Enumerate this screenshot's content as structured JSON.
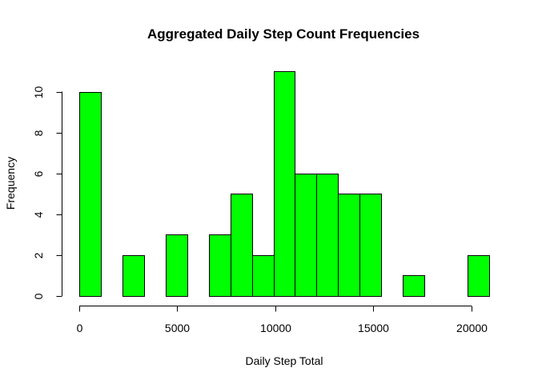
{
  "chart_data": {
    "type": "bar",
    "title": "Aggregated Daily Step Count Frequencies",
    "xlabel": "Daily Step Total",
    "ylabel": "Frequency",
    "bar_color": "#00ff00",
    "bin_edges": [
      0,
      1100,
      2200,
      3300,
      4400,
      5500,
      6600,
      7700,
      8800,
      9900,
      11000,
      12100,
      13200,
      14300,
      15400,
      16500,
      17600,
      18700,
      19800,
      20900
    ],
    "values": [
      10,
      0,
      2,
      0,
      3,
      0,
      3,
      5,
      2,
      11,
      6,
      6,
      5,
      5,
      0,
      1,
      0,
      0,
      2
    ],
    "xlim": [
      0,
      20900
    ],
    "ylim": [
      0,
      11
    ],
    "x_ticks": [
      0,
      5000,
      10000,
      15000,
      20000
    ],
    "y_ticks": [
      0,
      2,
      4,
      6,
      8,
      10
    ],
    "grid": false
  }
}
